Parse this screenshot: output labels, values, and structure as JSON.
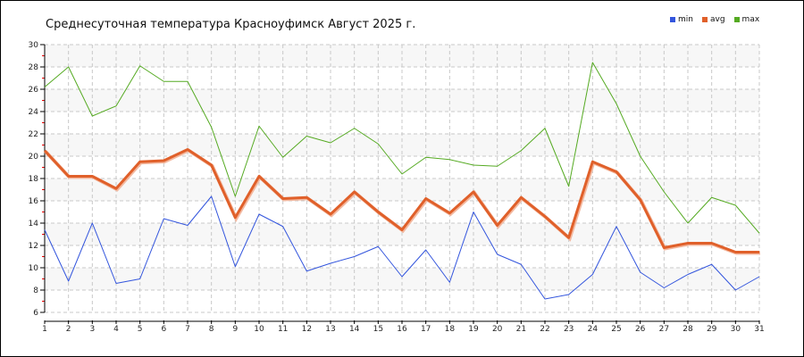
{
  "chart_data": {
    "type": "line",
    "title": "Среднесуточная температура Красноуфимск  Август 2025 г.",
    "xlabel": "",
    "ylabel": "",
    "x": [
      1,
      2,
      3,
      4,
      5,
      6,
      7,
      8,
      9,
      10,
      11,
      12,
      13,
      14,
      15,
      16,
      17,
      18,
      19,
      20,
      21,
      22,
      23,
      24,
      25,
      26,
      27,
      28,
      29,
      30,
      31
    ],
    "xlim": [
      1,
      31
    ],
    "ylim": [
      6,
      30
    ],
    "yticks": [
      6,
      8,
      10,
      12,
      14,
      16,
      18,
      20,
      22,
      24,
      26,
      28,
      30
    ],
    "grid": true,
    "legend_position": "top-right",
    "series": [
      {
        "name": "min",
        "color": "#3355dd",
        "values": [
          13.4,
          8.8,
          14.0,
          8.6,
          9.0,
          14.4,
          13.8,
          16.4,
          10.1,
          14.8,
          13.7,
          9.7,
          10.4,
          11.0,
          11.9,
          9.2,
          11.6,
          8.7,
          15.0,
          11.2,
          10.3,
          7.2,
          7.6,
          9.4,
          13.7,
          9.6,
          8.2,
          9.4,
          10.3,
          8.0,
          9.2
        ]
      },
      {
        "name": "avg",
        "color": "#e0602a",
        "values": [
          20.5,
          18.2,
          18.2,
          17.1,
          19.5,
          19.6,
          20.6,
          19.2,
          14.5,
          18.2,
          16.2,
          16.3,
          14.8,
          16.8,
          15.0,
          13.4,
          16.2,
          14.9,
          16.8,
          13.8,
          16.3,
          14.6,
          12.7,
          19.5,
          18.6,
          16.1,
          11.8,
          12.2,
          12.2,
          11.4,
          11.4
        ]
      },
      {
        "name": "max",
        "color": "#55aa22",
        "values": [
          26.2,
          28.0,
          23.6,
          24.5,
          28.1,
          26.7,
          26.7,
          22.6,
          16.4,
          22.7,
          19.9,
          21.8,
          21.2,
          22.5,
          21.1,
          18.4,
          19.9,
          19.7,
          19.2,
          19.1,
          20.5,
          22.5,
          17.3,
          28.4,
          24.7,
          20.0,
          16.8,
          14.0,
          16.3,
          15.6,
          13.1
        ]
      }
    ]
  }
}
